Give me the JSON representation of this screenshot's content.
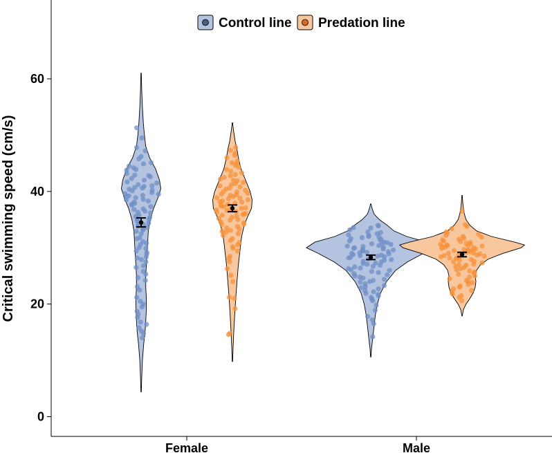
{
  "chart_data": {
    "type": "violin",
    "title": "",
    "xlabel": "",
    "ylabel": "Critical swimming speed (cm/s)",
    "ylim": [
      -3.5,
      74
    ],
    "yticks": [
      0,
      20,
      40,
      60
    ],
    "categories": [
      "Female",
      "Male"
    ],
    "colors": {
      "Control line": {
        "fill": "#b4c3df",
        "point": "#6f8fc7",
        "key": "#4a5f86"
      },
      "Predation line": {
        "fill": "#f9c79e",
        "point": "#f5923a",
        "key": "#d96a25"
      }
    },
    "series": [
      {
        "name": "Control line",
        "groups": [
          {
            "category": "Female",
            "mean": 34.5,
            "se": 0.8,
            "range": [
              4.4,
              61
            ],
            "density": [
              [
                4.4,
                0.003
              ],
              [
                7,
                0.01
              ],
              [
                10,
                0.02
              ],
              [
                13,
                0.04
              ],
              [
                15,
                0.06
              ],
              [
                17,
                0.07
              ],
              [
                19,
                0.08
              ],
              [
                21,
                0.08
              ],
              [
                23,
                0.07
              ],
              [
                25,
                0.07
              ],
              [
                27,
                0.08
              ],
              [
                29,
                0.09
              ],
              [
                31,
                0.1
              ],
              [
                33,
                0.11
              ],
              [
                35,
                0.14
              ],
              [
                37,
                0.19
              ],
              [
                39,
                0.26
              ],
              [
                40.5,
                0.3
              ],
              [
                42,
                0.28
              ],
              [
                44,
                0.22
              ],
              [
                46,
                0.13
              ],
              [
                48,
                0.07
              ],
              [
                50,
                0.05
              ],
              [
                52,
                0.035
              ],
              [
                55,
                0.02
              ],
              [
                58,
                0.01
              ],
              [
                61,
                0.003
              ]
            ],
            "points": [
              47.8,
              47.2,
              45.1,
              44.5,
              43.8,
              43.2,
              42.6,
              42,
              41.5,
              41,
              40.7,
              40.4,
              40.1,
              39.8,
              39.5,
              39.2,
              38.9,
              38.5,
              38.1,
              37.7,
              37.3,
              36.8,
              36.2,
              35.6,
              35,
              34.4,
              33.8,
              33.2,
              32.5,
              31.6,
              30.8,
              30,
              29.2,
              28.4,
              27.5,
              26.5,
              25.3,
              24.2,
              22.5,
              21.2,
              20,
              19.5,
              18.2,
              17.6,
              16.4,
              15.8,
              15.2,
              14.8,
              14,
              46.2,
              45.8,
              44.9,
              43.9,
              42.8,
              41.7,
              40.6,
              39.6,
              38.6,
              37.6,
              36.5,
              35.4,
              34.3,
              33.3,
              30.6,
              29.4,
              28.2,
              49.5,
              51.3,
              23.1,
              20.5,
              44.2,
              42.3,
              40.9,
              39.1,
              38.3,
              36.9,
              35.8,
              34.8,
              33.6,
              32.9,
              31.8,
              31.1,
              29.9,
              28.9,
              27.9,
              26.8,
              25.8,
              24.7,
              42.9,
              41.2,
              40.2,
              39.3,
              37.9,
              36.3,
              35.2,
              34.1,
              18.7,
              16.8
            ]
          },
          {
            "category": "Male",
            "mean": 28.3,
            "se": 0.4,
            "range": [
              10.6,
              37.8
            ],
            "density": [
              [
                10.6,
                0.003
              ],
              [
                12,
                0.01
              ],
              [
                14,
                0.03
              ],
              [
                16,
                0.05
              ],
              [
                18,
                0.07
              ],
              [
                20,
                0.1
              ],
              [
                22,
                0.15
              ],
              [
                24,
                0.24
              ],
              [
                26,
                0.38
              ],
              [
                27.5,
                0.56
              ],
              [
                29,
                0.8
              ],
              [
                30,
                0.98
              ],
              [
                31,
                0.85
              ],
              [
                32,
                0.55
              ],
              [
                33,
                0.35
              ],
              [
                34,
                0.25
              ],
              [
                35,
                0.13
              ],
              [
                36,
                0.05
              ],
              [
                37,
                0.02
              ],
              [
                37.8,
                0.003
              ]
            ],
            "points": [
              34,
              33.6,
              33.2,
              32.8,
              32.5,
              32.2,
              31.9,
              31.6,
              31.4,
              31.2,
              31,
              30.8,
              30.6,
              30.4,
              30.2,
              30,
              29.8,
              29.6,
              29.4,
              29.2,
              29,
              28.8,
              28.6,
              28.4,
              28.2,
              28,
              27.8,
              27.5,
              27.2,
              26.9,
              26.6,
              26.3,
              26,
              25.6,
              25.2,
              24.8,
              24.4,
              24,
              23.6,
              23.1,
              22.7,
              22.2,
              21.7,
              21.2,
              20.6,
              19.8,
              18.9,
              17.8,
              16.5,
              14.2,
              33.5,
              32.7,
              32,
              31.5,
              30.9,
              30.3,
              29.9,
              29.5,
              29.1,
              28.7,
              28.3,
              27.9,
              27.3,
              26.7,
              26.1,
              25.4,
              24.6,
              23.9,
              22.9,
              21.9,
              33.9,
              31.8,
              30.7,
              29.7,
              28.9,
              27.6,
              26.4,
              25,
              23.3,
              21.5,
              32.3,
              30.1,
              29.3,
              28.5,
              27.1,
              25.8,
              24.2,
              22.4,
              20.9,
              17.2
            ]
          }
        ]
      },
      {
        "name": "Predation line",
        "groups": [
          {
            "category": "Female",
            "mean": 37.0,
            "se": 0.6,
            "range": [
              9.8,
              52.2
            ],
            "density": [
              [
                9.8,
                0.003
              ],
              [
                12,
                0.01
              ],
              [
                15,
                0.02
              ],
              [
                18,
                0.035
              ],
              [
                21,
                0.05
              ],
              [
                24,
                0.07
              ],
              [
                27,
                0.09
              ],
              [
                30,
                0.12
              ],
              [
                32,
                0.14
              ],
              [
                34,
                0.18
              ],
              [
                35.5,
                0.23
              ],
              [
                37,
                0.29
              ],
              [
                38.5,
                0.3
              ],
              [
                40,
                0.27
              ],
              [
                42,
                0.2
              ],
              [
                44,
                0.13
              ],
              [
                46,
                0.09
              ],
              [
                47.5,
                0.07
              ],
              [
                49,
                0.04
              ],
              [
                51,
                0.015
              ],
              [
                52.2,
                0.003
              ]
            ],
            "points": [
              47.8,
              47.3,
              46.8,
              46,
              45.4,
              44.9,
              44.3,
              43.6,
              43,
              42.5,
              42,
              41.6,
              41.2,
              40.8,
              40.4,
              40,
              39.7,
              39.4,
              39.1,
              38.8,
              38.5,
              38.2,
              37.9,
              37.6,
              37.3,
              37,
              36.7,
              36.4,
              36.1,
              35.8,
              35.4,
              35,
              34.6,
              34.2,
              33.8,
              33.3,
              32.8,
              32.2,
              31.6,
              30.9,
              30.2,
              29.4,
              28.5,
              27.5,
              26.3,
              25.1,
              24,
              21,
              19.2,
              14.6,
              46.4,
              45.1,
              43.9,
              42.8,
              41.9,
              41,
              40.2,
              39.5,
              38.9,
              38.3,
              37.7,
              37.1,
              36.6,
              36,
              35.2,
              34.4,
              33.5,
              32.5,
              31.3,
              29.9,
              43.3,
              41.4,
              39.9,
              38.7,
              37.4,
              36.3,
              35.6,
              34.1,
              32.9,
              28.1,
              44.6,
              42.2,
              40.6,
              39.3,
              38.1,
              36.9,
              35.9,
              34.9,
              33.1,
              30.5,
              14.8,
              21.2
            ]
          },
          {
            "category": "Male",
            "mean": 28.8,
            "se": 0.4,
            "range": [
              17.9,
              39.3
            ],
            "density": [
              [
                17.9,
                0.003
              ],
              [
                19,
                0.02
              ],
              [
                20,
                0.06
              ],
              [
                21,
                0.12
              ],
              [
                22,
                0.17
              ],
              [
                23,
                0.2
              ],
              [
                24,
                0.21
              ],
              [
                25,
                0.2
              ],
              [
                26,
                0.22
              ],
              [
                27,
                0.28
              ],
              [
                28,
                0.4
              ],
              [
                29,
                0.62
              ],
              [
                30,
                0.9
              ],
              [
                30.5,
                0.95
              ],
              [
                31,
                0.8
              ],
              [
                32,
                0.45
              ],
              [
                33,
                0.22
              ],
              [
                34,
                0.12
              ],
              [
                35,
                0.06
              ],
              [
                36,
                0.035
              ],
              [
                37,
                0.02
              ],
              [
                38,
                0.01
              ],
              [
                39.3,
                0.003
              ]
            ],
            "points": [
              36.5,
              34.1,
              33.4,
              32.8,
              32.4,
              32,
              31.7,
              31.4,
              31.1,
              30.8,
              30.6,
              30.4,
              30.2,
              30,
              29.8,
              29.6,
              29.4,
              29.2,
              29,
              28.8,
              28.6,
              28.4,
              28.2,
              27.9,
              27.6,
              27.3,
              27,
              26.7,
              26.3,
              25.9,
              25.5,
              25,
              24.5,
              24,
              23.5,
              23,
              22.4,
              21.8,
              21.2,
              20.6,
              33.8,
              32.6,
              31.9,
              31.2,
              30.7,
              30.3,
              29.9,
              29.5,
              29.1,
              28.7,
              28.3,
              27.8,
              27.1,
              26.5,
              25.7,
              24.8,
              23.8,
              22.7,
              21.5,
              30.9,
              30.5,
              30.1,
              29.7,
              29.3,
              28.9,
              28.5,
              27.5,
              26.1,
              24.2,
              22.1,
              32.2,
              31.5,
              30.4,
              29.6,
              28.1,
              26.9,
              25.3,
              23.2
            ]
          }
        ]
      }
    ],
    "legend": {
      "position": "top",
      "entries": [
        "Control line",
        "Predation line"
      ]
    }
  }
}
